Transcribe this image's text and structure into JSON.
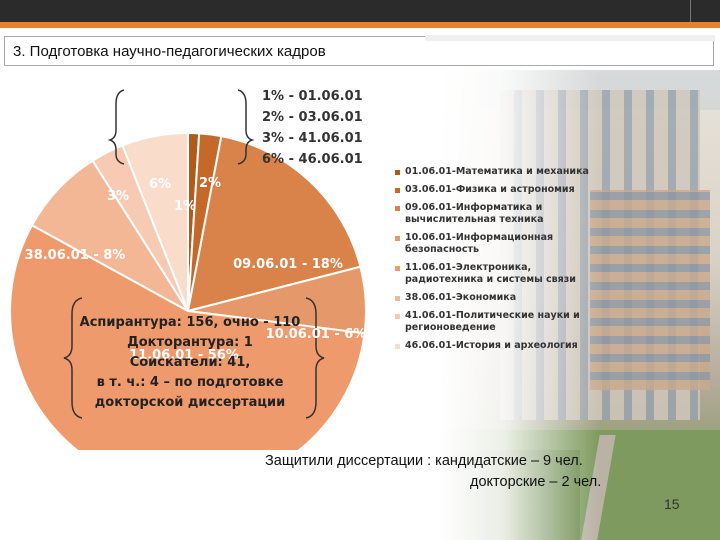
{
  "slide": {
    "title": "3. Подготовка научно-педагогических кадров",
    "page_number": "15",
    "colors": {
      "accent": "#e8822d",
      "top_bar": "#2b2b2b"
    }
  },
  "chart_data": {
    "type": "pie",
    "slices": [
      {
        "code": "01.06.01",
        "value": 1,
        "label": "1%",
        "color": "#b05a1e"
      },
      {
        "code": "03.06.01",
        "value": 2,
        "label": "2%",
        "color": "#c4692a"
      },
      {
        "code": "09.06.01",
        "value": 18,
        "label": "09.06.01 - 18%",
        "color": "#d9824a"
      },
      {
        "code": "10.06.01",
        "value": 6,
        "label": "10.06.01 - 6%",
        "color": "#e5996a"
      },
      {
        "code": "11.06.01",
        "value": 56,
        "label": "11.06.01 - 56%",
        "color": "#ef9a6c"
      },
      {
        "code": "38.06.01",
        "value": 8,
        "label": "38.06.01 - 8%",
        "color": "#f4b796"
      },
      {
        "code": "41.06.01",
        "value": 3,
        "label": "3%",
        "color": "#f7cbb3"
      },
      {
        "code": "46.06.01",
        "value": 6,
        "label": "6%",
        "color": "#f9dcca"
      }
    ],
    "small_slice_labels": [
      "1%",
      "2%",
      "3%",
      "6%"
    ],
    "bracket_list": [
      "1% - 01.06.01",
      "2% - 03.06.01",
      "3% - 41.06.01",
      "6% - 46.06.01"
    ],
    "annotation": [
      "Аспирантура: 156, очно - 110",
      "Докторантура: 1",
      "Соискатели: 41,",
      "в т. ч.: 4 – по подготовке",
      "докторской диссертации"
    ],
    "legend": [
      {
        "text": "01.06.01-Математика и механика",
        "color": "#b05a1e"
      },
      {
        "text": "03.06.01-Физика и астрономия",
        "color": "#c4692a"
      },
      {
        "text": "09.06.01-Информатика и вычислительная техника",
        "color": "#d9824a"
      },
      {
        "text": "10.06.01-Информационная безопасность",
        "color": "#e5996a"
      },
      {
        "text": "11.06.01-Электроника, радиотехника и системы связи",
        "color": "#ef9a6c"
      },
      {
        "text": "38.06.01-Экономика",
        "color": "#f4b796"
      },
      {
        "text": "41.06.01-Политические науки и регионоведение",
        "color": "#f7cbb3"
      },
      {
        "text": "46.06.01-История и археология",
        "color": "#f9dcca"
      }
    ]
  },
  "footer": {
    "line1": "Защитили диссертации : кандидатские – 9 чел.",
    "line2": "докторские – 2 чел."
  }
}
